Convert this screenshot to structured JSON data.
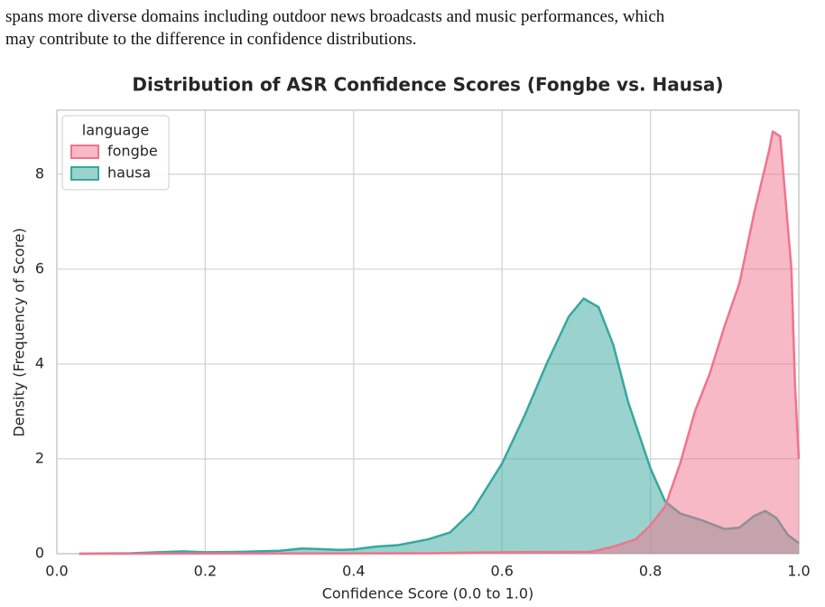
{
  "paragraph": {
    "lines": [
      "spans more diverse domains including outdoor news broadcasts and music performances, which",
      "may contribute to the difference in confidence distributions."
    ]
  },
  "chart_data": {
    "type": "area",
    "title": "Distribution of ASR Confidence Scores (Fongbe vs. Hausa)",
    "x_label": "Confidence Score (0.0 to 1.0)",
    "y_label": "Density (Frequency of Score)",
    "legend_title": "language",
    "legend_position": "upper left",
    "grid": true,
    "xlim": [
      0,
      1
    ],
    "ylim": [
      0,
      9.35
    ],
    "xticks": [
      {
        "value": 0,
        "label": "0.0"
      },
      0.2,
      0.4,
      0.6,
      0.8,
      {
        "value": 1,
        "label": "1.0"
      }
    ],
    "yticks": [
      0,
      2,
      4,
      6,
      8
    ],
    "series": [
      {
        "name": "hausa",
        "color": "#36a89e",
        "x": [
          0.03,
          0.1,
          0.17,
          0.2,
          0.25,
          0.3,
          0.33,
          0.35,
          0.38,
          0.4,
          0.43,
          0.46,
          0.5,
          0.53,
          0.56,
          0.6,
          0.63,
          0.66,
          0.69,
          0.71,
          0.73,
          0.75,
          0.77,
          0.8,
          0.82,
          0.84,
          0.87,
          0.9,
          0.92,
          0.94,
          0.955,
          0.97,
          0.985,
          1.0
        ],
        "values": [
          0.0,
          0.01,
          0.05,
          0.03,
          0.04,
          0.06,
          0.11,
          0.1,
          0.08,
          0.09,
          0.15,
          0.18,
          0.3,
          0.45,
          0.9,
          1.9,
          2.9,
          4.0,
          5.0,
          5.38,
          5.2,
          4.4,
          3.2,
          1.8,
          1.1,
          0.85,
          0.7,
          0.52,
          0.55,
          0.8,
          0.9,
          0.75,
          0.4,
          0.22
        ]
      },
      {
        "name": "fongbe",
        "color": "#f0748c",
        "x": [
          0.03,
          0.5,
          0.6,
          0.72,
          0.75,
          0.78,
          0.8,
          0.82,
          0.84,
          0.86,
          0.88,
          0.9,
          0.92,
          0.94,
          0.96,
          0.965,
          0.975,
          0.99,
          0.995,
          1.0
        ],
        "values": [
          0.0,
          0.01,
          0.03,
          0.04,
          0.15,
          0.3,
          0.6,
          1.0,
          1.9,
          3.0,
          3.8,
          4.8,
          5.7,
          7.2,
          8.5,
          8.9,
          8.8,
          6.0,
          3.5,
          2.0
        ]
      }
    ]
  }
}
